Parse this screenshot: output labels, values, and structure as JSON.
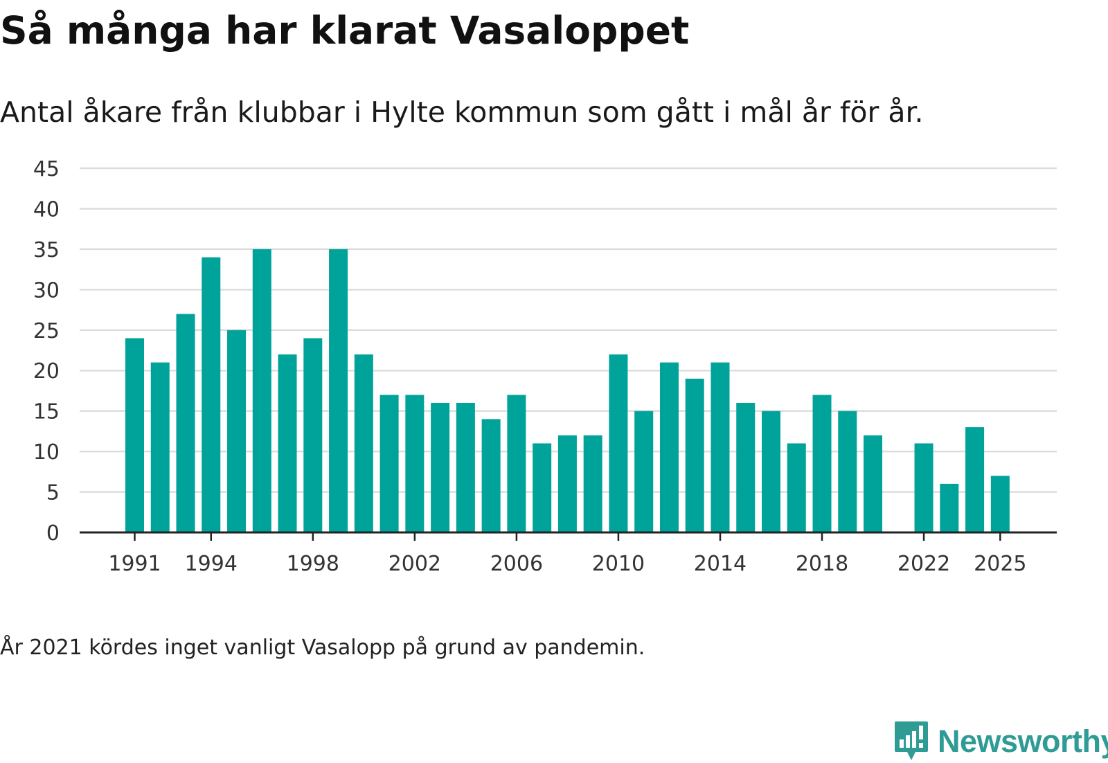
{
  "header": {
    "title": "Så många har klarat Vasaloppet",
    "subtitle": "Antal åkare från klubbar i Hylte kommun som gått i mål år för år."
  },
  "footer": {
    "note": "År 2021 kördes inget vanligt Vasalopp på grund av pandemin.",
    "brand": "Newsworthy",
    "brand_icon": "bar-chart-speech-bubble-icon"
  },
  "colors": {
    "bar": "#00a39a",
    "brand": "#2e9c95",
    "grid": "#dcdcdc",
    "axis": "#222222",
    "tick_text": "#333333"
  },
  "chart_data": {
    "type": "bar",
    "title": "Så många har klarat Vasaloppet",
    "xlabel": "",
    "ylabel": "",
    "ylim": [
      0,
      45
    ],
    "yticks": [
      0,
      5,
      10,
      15,
      20,
      25,
      30,
      35,
      40,
      45
    ],
    "grid": true,
    "legend": "none",
    "xticks": [
      "1991",
      "1994",
      "1998",
      "2002",
      "2006",
      "2010",
      "2014",
      "2018",
      "2022",
      "2025"
    ],
    "categories": [
      "1991",
      "1992",
      "1993",
      "1994",
      "1995",
      "1996",
      "1997",
      "1998",
      "1999",
      "2000",
      "2001",
      "2002",
      "2003",
      "2004",
      "2005",
      "2006",
      "2007",
      "2008",
      "2009",
      "2010",
      "2011",
      "2012",
      "2013",
      "2014",
      "2015",
      "2016",
      "2017",
      "2018",
      "2019",
      "2020",
      "2021",
      "2022",
      "2023",
      "2024",
      "2025"
    ],
    "values": [
      24,
      21,
      27,
      34,
      25,
      35,
      22,
      24,
      35,
      22,
      17,
      17,
      16,
      16,
      14,
      17,
      11,
      12,
      12,
      22,
      15,
      21,
      19,
      21,
      16,
      15,
      11,
      17,
      15,
      12,
      null,
      11,
      6,
      13,
      7
    ]
  }
}
